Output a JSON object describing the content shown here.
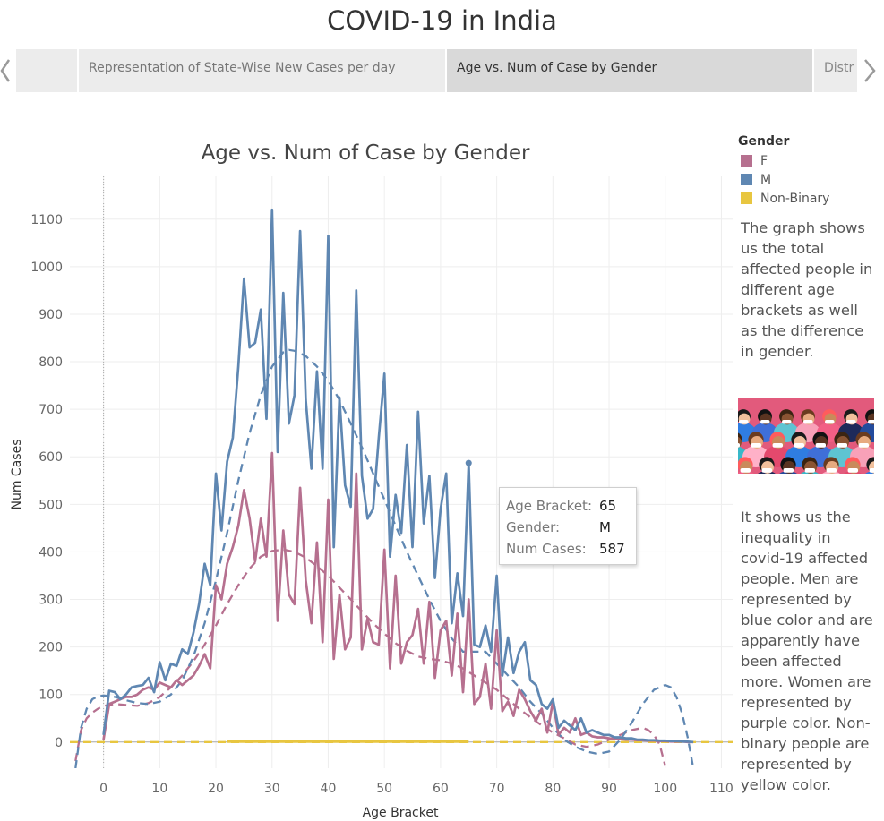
{
  "story": {
    "title": "COVID-19 in India",
    "points": [
      "Representation of State-Wise New Cases per day",
      "Age vs. Num of Case by Gender",
      "Distr"
    ],
    "active_point": 1
  },
  "legend": {
    "title": "Gender",
    "items": [
      {
        "label": "F",
        "color": "#b6708f"
      },
      {
        "label": "M",
        "color": "#5f87b2"
      },
      {
        "label": "Non-Binary",
        "color": "#e8c640"
      }
    ]
  },
  "description_1": "The graph shows us the total affected people in different age brackets as well as the difference in gender.",
  "description_2": "It shows us the inequality in covid-19 affected people. Men are represented by blue color and are apparently have been affected more. Women are represented by purple color. Non-binary people are represented by yellow color.",
  "tooltip": {
    "rows": [
      {
        "key": "Age Bracket:",
        "value": "65"
      },
      {
        "key": "Gender:",
        "value": "M"
      },
      {
        "key": "Num Cases:",
        "value": "587"
      }
    ]
  },
  "chart_data": {
    "type": "line",
    "title": "Age vs. Num of Case by Gender",
    "xlabel": "Age Bracket",
    "ylabel": "Num Cases",
    "xlim": [
      -6,
      112
    ],
    "ylim": [
      -55,
      1190
    ],
    "x_ticks": [
      0,
      10,
      20,
      30,
      40,
      50,
      60,
      70,
      80,
      90,
      100,
      110
    ],
    "y_ticks": [
      0,
      100,
      200,
      300,
      400,
      500,
      600,
      700,
      800,
      900,
      1000,
      1100
    ],
    "grid": true,
    "legend_position": "right",
    "highlighted_point": {
      "x": 65,
      "y": 587,
      "series": "M"
    },
    "series": [
      {
        "name": "M",
        "color": "#5f87b2",
        "x": [
          0,
          1,
          2,
          3,
          4,
          5,
          6,
          7,
          8,
          9,
          10,
          11,
          12,
          13,
          14,
          15,
          16,
          17,
          18,
          19,
          20,
          21,
          22,
          23,
          24,
          25,
          26,
          27,
          28,
          29,
          30,
          31,
          32,
          33,
          34,
          35,
          36,
          37,
          38,
          39,
          40,
          41,
          42,
          43,
          44,
          45,
          46,
          47,
          48,
          49,
          50,
          51,
          52,
          53,
          54,
          55,
          56,
          57,
          58,
          59,
          60,
          61,
          62,
          63,
          64,
          65,
          66,
          67,
          68,
          69,
          70,
          71,
          72,
          73,
          74,
          75,
          76,
          77,
          78,
          79,
          80,
          81,
          82,
          83,
          84,
          85,
          86,
          87,
          88,
          89,
          90,
          91,
          92,
          93,
          94,
          95,
          96,
          97,
          98,
          99,
          100,
          101,
          102,
          103,
          104,
          105
        ],
        "values": [
          15,
          108,
          105,
          90,
          100,
          115,
          118,
          120,
          135,
          105,
          168,
          130,
          165,
          160,
          195,
          185,
          230,
          290,
          375,
          330,
          565,
          445,
          590,
          640,
          790,
          975,
          830,
          840,
          910,
          680,
          1120,
          610,
          945,
          670,
          730,
          1075,
          720,
          575,
          780,
          575,
          1065,
          410,
          725,
          540,
          495,
          950,
          560,
          470,
          490,
          640,
          775,
          390,
          520,
          440,
          625,
          410,
          695,
          460,
          560,
          345,
          490,
          565,
          250,
          355,
          265,
          587,
          205,
          200,
          245,
          190,
          350,
          140,
          220,
          145,
          190,
          210,
          130,
          120,
          80,
          70,
          90,
          30,
          45,
          35,
          25,
          50,
          20,
          25,
          20,
          15,
          15,
          10,
          10,
          8,
          8,
          5,
          5,
          4,
          4,
          3,
          3,
          2,
          2,
          1,
          1,
          0
        ]
      },
      {
        "name": "F",
        "color": "#b6708f",
        "x": [
          0,
          1,
          2,
          3,
          4,
          5,
          6,
          7,
          8,
          9,
          10,
          11,
          12,
          13,
          14,
          15,
          16,
          17,
          18,
          19,
          20,
          21,
          22,
          23,
          24,
          25,
          26,
          27,
          28,
          29,
          30,
          31,
          32,
          33,
          34,
          35,
          36,
          37,
          38,
          39,
          40,
          41,
          42,
          43,
          44,
          45,
          46,
          47,
          48,
          49,
          50,
          51,
          52,
          53,
          54,
          55,
          56,
          57,
          58,
          59,
          60,
          61,
          62,
          63,
          64,
          65,
          66,
          67,
          68,
          69,
          70,
          71,
          72,
          73,
          74,
          75,
          76,
          77,
          78,
          79,
          80,
          81,
          82,
          83,
          84,
          85,
          86,
          87,
          88,
          89,
          90,
          91,
          92,
          93,
          94,
          95,
          96,
          97,
          98,
          99,
          100,
          101,
          102,
          103,
          104,
          105
        ],
        "values": [
          5,
          80,
          85,
          90,
          95,
          95,
          100,
          110,
          115,
          110,
          125,
          120,
          115,
          130,
          120,
          130,
          140,
          160,
          185,
          155,
          330,
          300,
          375,
          410,
          455,
          530,
          470,
          380,
          470,
          390,
          608,
          255,
          445,
          310,
          290,
          535,
          340,
          250,
          420,
          210,
          510,
          175,
          310,
          195,
          220,
          565,
          195,
          260,
          210,
          205,
          405,
          155,
          350,
          165,
          210,
          225,
          280,
          165,
          295,
          135,
          235,
          255,
          140,
          270,
          105,
          300,
          80,
          95,
          165,
          70,
          235,
          65,
          85,
          55,
          110,
          90,
          65,
          45,
          70,
          20,
          85,
          15,
          30,
          20,
          50,
          15,
          20,
          12,
          10,
          10,
          8,
          6,
          6,
          5,
          5,
          4,
          4,
          3,
          3,
          2,
          2,
          1,
          1,
          1,
          0,
          0
        ]
      },
      {
        "name": "Non-Binary",
        "color": "#e8c640",
        "x": [
          22,
          30,
          40,
          50,
          60,
          65
        ],
        "values": [
          1,
          1,
          1,
          1,
          1,
          1
        ]
      }
    ],
    "trend_lines": [
      {
        "series": "M",
        "style": "dashed",
        "color": "#5f87b2",
        "x": [
          -5,
          -4,
          -3,
          -2,
          -1,
          0,
          2,
          4,
          6,
          8,
          10,
          12,
          14,
          16,
          18,
          20,
          22,
          24,
          26,
          28,
          30,
          32,
          33,
          34,
          36,
          38,
          40,
          42,
          44,
          46,
          48,
          50,
          52,
          54,
          56,
          58,
          60,
          62,
          64,
          66,
          68,
          70,
          72,
          74,
          76,
          78,
          80,
          82,
          84,
          86,
          88,
          90,
          92,
          94,
          96,
          98,
          100,
          101,
          102,
          103,
          104,
          105
        ],
        "values": [
          -55,
          30,
          70,
          90,
          96,
          98,
          95,
          88,
          82,
          80,
          85,
          100,
          130,
          180,
          250,
          340,
          440,
          550,
          650,
          730,
          790,
          820,
          825,
          823,
          812,
          790,
          760,
          720,
          670,
          620,
          565,
          510,
          455,
          400,
          350,
          300,
          255,
          218,
          190,
          190,
          190,
          165,
          140,
          115,
          85,
          60,
          30,
          5,
          -10,
          -20,
          -25,
          -20,
          5,
          40,
          80,
          110,
          120,
          115,
          95,
          60,
          10,
          -55
        ]
      },
      {
        "series": "F",
        "style": "dashed",
        "color": "#b6708f",
        "x": [
          -5,
          -4,
          -3,
          -2,
          -1,
          0,
          2,
          4,
          6,
          8,
          10,
          12,
          14,
          16,
          18,
          20,
          22,
          24,
          26,
          28,
          30,
          32,
          34,
          36,
          38,
          40,
          42,
          44,
          46,
          48,
          50,
          52,
          54,
          56,
          58,
          60,
          62,
          64,
          66,
          68,
          70,
          72,
          74,
          76,
          78,
          80,
          82,
          84,
          86,
          88,
          90,
          92,
          94,
          96,
          97,
          98,
          99,
          100
        ],
        "values": [
          -40,
          25,
          50,
          62,
          70,
          76,
          80,
          78,
          76,
          82,
          95,
          115,
          140,
          170,
          205,
          245,
          290,
          330,
          365,
          390,
          402,
          405,
          400,
          388,
          370,
          350,
          325,
          300,
          275,
          250,
          228,
          208,
          192,
          180,
          175,
          172,
          165,
          155,
          140,
          125,
          110,
          90,
          70,
          52,
          35,
          20,
          8,
          -5,
          -10,
          -5,
          5,
          15,
          25,
          30,
          25,
          15,
          -5,
          -50
        ]
      },
      {
        "series": "Non-Binary",
        "style": "dashed",
        "color": "#e8c640",
        "x": [
          -6,
          112
        ],
        "values": [
          0,
          0
        ]
      }
    ]
  }
}
